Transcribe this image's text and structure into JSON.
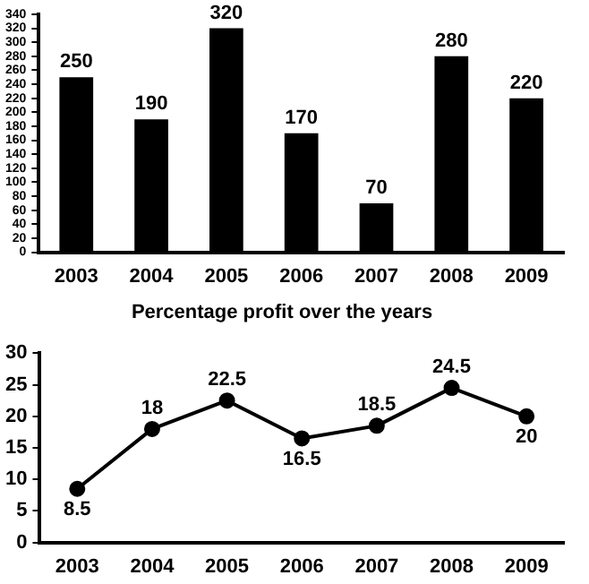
{
  "chart_data": [
    {
      "type": "bar",
      "categories": [
        "2003",
        "2004",
        "2005",
        "2006",
        "2007",
        "2008",
        "2009"
      ],
      "values": [
        250,
        190,
        320,
        170,
        70,
        280,
        220
      ],
      "color": "#000000",
      "ylim": [
        0,
        340
      ],
      "yticks": [
        0,
        20,
        40,
        60,
        80,
        100,
        120,
        140,
        160,
        180,
        200,
        220,
        240,
        260,
        280,
        300,
        320,
        340
      ],
      "grid": false,
      "legend": false,
      "data_labels": true
    },
    {
      "type": "line",
      "title": "Percentage profit over the years",
      "categories": [
        "2003",
        "2004",
        "2005",
        "2006",
        "2007",
        "2008",
        "2009"
      ],
      "values": [
        8.5,
        18,
        22.5,
        16.5,
        18.5,
        24.5,
        20
      ],
      "color": "#000000",
      "ylim": [
        0,
        30
      ],
      "yticks": [
        0,
        5,
        10,
        15,
        20,
        25,
        30
      ],
      "grid": false,
      "legend": false,
      "marker": "circle",
      "line_style": "solid",
      "data_labels": true
    }
  ]
}
